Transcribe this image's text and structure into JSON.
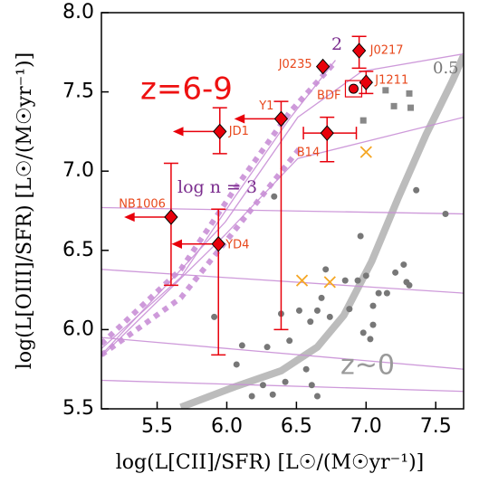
{
  "chart_data": {
    "type": "scatter",
    "xlabel": "log(L[CII]/SFR) [L☉/(M☉yr⁻¹)]",
    "ylabel": "log(L[OIII]/SFR) [L☉/(M☉yr⁻¹)]",
    "xlim": [
      5.1,
      7.7
    ],
    "ylim": [
      5.5,
      8.0
    ],
    "xticks": [
      5.5,
      {
        "value": 6,
        "label": "6.0"
      },
      6.5,
      {
        "value": 7,
        "label": "7.0"
      },
      7.5
    ],
    "yticks": [
      5.5,
      {
        "value": 6,
        "label": "6.0"
      },
      6.5,
      {
        "value": 7,
        "label": "7.0"
      },
      7.5,
      {
        "value": 8,
        "label": "8.0"
      }
    ],
    "curves": [
      {
        "color": "#b0b0b0",
        "style": "thick",
        "x": [
          5.67,
          6.06,
          6.39,
          6.65,
          6.84,
          7.04,
          7.23,
          7.43,
          7.62,
          7.7
        ],
        "y": [
          5.51,
          5.64,
          5.74,
          5.89,
          6.09,
          6.43,
          6.83,
          7.23,
          7.57,
          7.73
        ]
      },
      {
        "color": "#c98fd6",
        "style": "dotted",
        "x": [
          5.1,
          5.67,
          6.06,
          6.45,
          6.78
        ],
        "y": [
          5.91,
          6.38,
          6.89,
          7.37,
          7.69
        ]
      },
      {
        "color": "#c98fd6",
        "style": "dotted",
        "x": [
          5.1,
          5.67,
          6.06,
          6.52
        ],
        "y": [
          5.84,
          6.2,
          6.63,
          7.14
        ]
      },
      {
        "color": "#c98fd6",
        "style": "thin",
        "x": [
          5.1,
          5.67,
          6.06,
          6.45,
          6.78
        ],
        "y": [
          5.88,
          6.33,
          6.84,
          7.33,
          7.7
        ]
      },
      {
        "color": "#c98fd6",
        "style": "thin",
        "x": [
          5.1,
          5.99,
          6.51,
          6.97,
          7.7
        ],
        "y": [
          5.84,
          6.68,
          7.34,
          7.63,
          7.74
        ]
      },
      {
        "color": "#c98fd6",
        "style": "thin",
        "x": [
          5.1,
          5.99,
          6.51,
          7.7
        ],
        "y": [
          5.83,
          6.6,
          7.08,
          7.34
        ]
      },
      {
        "color": "#c98fd6",
        "style": "thin",
        "x": [
          5.1,
          7.7
        ],
        "y": [
          6.77,
          6.73
        ]
      },
      {
        "color": "#c98fd6",
        "style": "thin",
        "x": [
          5.1,
          7.7
        ],
        "y": [
          6.38,
          6.23
        ]
      },
      {
        "color": "#c98fd6",
        "style": "thin",
        "x": [
          5.1,
          7.7
        ],
        "y": [
          5.95,
          5.75
        ]
      },
      {
        "color": "#c98fd6",
        "style": "thin",
        "x": [
          5.1,
          7.7
        ],
        "y": [
          5.68,
          5.61
        ]
      }
    ],
    "series": [
      {
        "marker": "dot",
        "color": "#777777",
        "x": [
          7.36,
          7.57,
          6.96,
          6.34,
          7.27,
          7.21,
          7.0,
          7.31,
          7.15,
          6.94,
          7.05,
          6.88,
          7.05,
          6.98,
          6.71,
          6.85,
          6.68,
          6.65,
          6.52,
          6.6,
          6.74,
          6.39,
          5.91,
          6.11,
          6.29,
          6.07,
          6.45,
          6.57,
          6.26,
          6.42,
          6.61,
          6.65,
          6.18,
          6.33,
          7.29,
          7.09,
          7.03
        ],
        "y": [
          6.88,
          6.73,
          6.59,
          6.84,
          6.41,
          6.36,
          6.34,
          6.28,
          6.23,
          6.31,
          6.15,
          6.13,
          6.03,
          5.98,
          6.38,
          6.31,
          6.2,
          6.12,
          6.12,
          6.05,
          6.08,
          6.1,
          6.08,
          5.9,
          5.89,
          5.78,
          5.93,
          5.75,
          5.65,
          5.67,
          5.65,
          5.58,
          5.58,
          5.59,
          6.3,
          6.23,
          5.94
        ]
      },
      {
        "marker": "square",
        "color": "#888888",
        "x": [
          6.98,
          7.2,
          7.31,
          7.32,
          7.14
        ],
        "y": [
          7.32,
          7.41,
          7.49,
          7.4,
          7.51
        ]
      },
      {
        "marker": "cross",
        "color": "#f5a623",
        "x": [
          7.0,
          6.54,
          6.74
        ],
        "y": [
          7.12,
          6.31,
          6.3
        ]
      },
      {
        "marker": "diamond",
        "color": "#e8000b",
        "labels": [
          "JD1",
          "Y1",
          "NB1006",
          "YD4",
          "B14",
          "J0235",
          "J0217",
          "J1211"
        ],
        "x": [
          5.95,
          6.39,
          5.6,
          5.94,
          6.72,
          6.69,
          6.95,
          7.0
        ],
        "y": [
          7.25,
          7.33,
          6.71,
          6.54,
          7.24,
          7.66,
          7.76,
          7.56
        ],
        "yerr": [
          [
            0.14,
            0.15
          ],
          [
            1.33,
            0.11
          ],
          [
            0.43,
            0.34
          ],
          [
            0.7,
            0.22
          ],
          [
            0.18,
            0.1
          ],
          null,
          [
            0.11,
            0.09
          ],
          [
            0.07,
            0.07
          ]
        ],
        "xerr": [
          null,
          null,
          null,
          null,
          [
            0.17,
            0.21
          ],
          null,
          null,
          null
        ],
        "x_upper_limit": [
          true,
          true,
          true,
          true,
          false,
          false,
          false,
          false
        ]
      },
      {
        "marker": "circle",
        "color": "#e8000b",
        "boxed": true,
        "labels": [
          "BDF"
        ],
        "x": [
          6.91
        ],
        "y": [
          7.52
        ]
      }
    ],
    "annotations": [
      {
        "text": "z=6-9",
        "color": "#ee1111"
      },
      {
        "text": "log n = 3",
        "color": "#7b2d8e"
      },
      {
        "text": "2",
        "color": "#7b2d8e"
      },
      {
        "text": "0.5",
        "color": "#777777"
      },
      {
        "text": "z~0",
        "color": "#999999"
      }
    ]
  }
}
